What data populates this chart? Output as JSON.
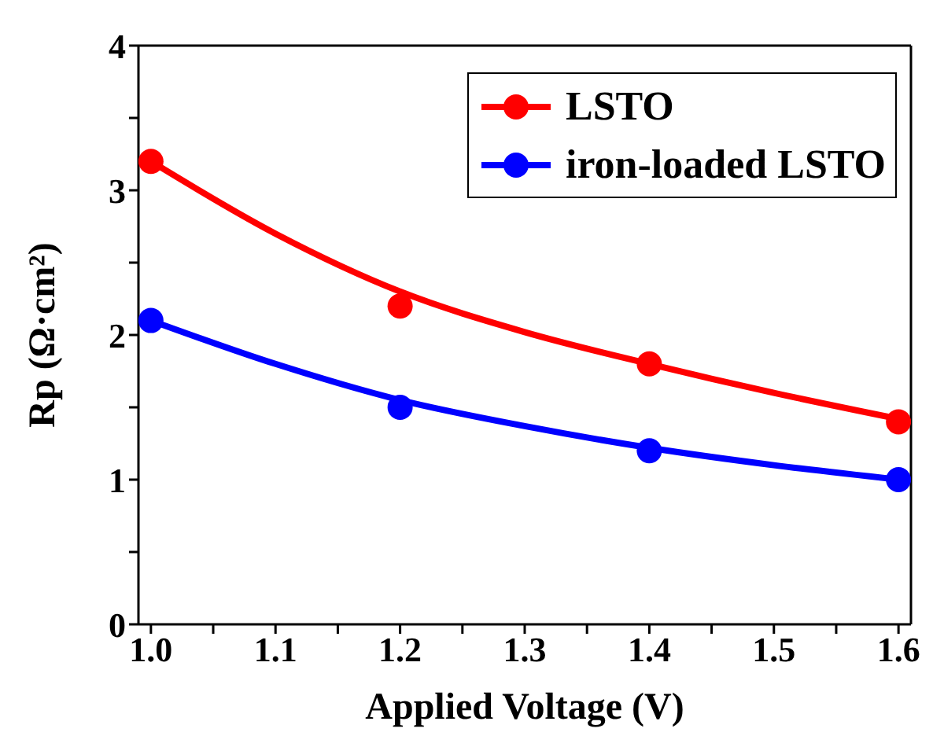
{
  "chart_data": {
    "type": "scatter",
    "xlabel": "Applied Voltage (V)",
    "ylabel": "Rp (Ω·cm²)",
    "xlim": [
      0.99,
      1.61
    ],
    "xticks": [
      {
        "value": 1.0,
        "label": "1.0"
      },
      {
        "value": 1.05,
        "label": null
      },
      1.1,
      {
        "value": 1.15,
        "label": null
      },
      1.2,
      {
        "value": 1.25,
        "label": null
      },
      1.3,
      {
        "value": 1.35,
        "label": null
      },
      1.4,
      {
        "value": 1.45,
        "label": null
      },
      1.5,
      {
        "value": 1.55,
        "label": null
      },
      1.6
    ],
    "ylim": [
      0,
      4
    ],
    "yticks": [
      0,
      {
        "value": 0.5,
        "label": null
      },
      1,
      {
        "value": 1.5,
        "label": null
      },
      2,
      {
        "value": 2.5,
        "label": null
      },
      3,
      {
        "value": 3.5,
        "label": null
      },
      4
    ],
    "x": [
      1.0,
      1.2,
      1.4,
      1.6
    ],
    "legend": "top right",
    "series": [
      {
        "name": "LSTO",
        "color": "#ff0000",
        "marker": "circle",
        "values": [
          3.2,
          2.2,
          1.8,
          1.4
        ]
      },
      {
        "name": "iron-loaded LSTO",
        "color": "#0000ff",
        "marker": "circle",
        "values": [
          2.1,
          1.5,
          1.2,
          1.0
        ]
      },
      {
        "type": "line",
        "marker": "none",
        "color": "#ff0000",
        "x": [
          1.0,
          1.1,
          1.2,
          1.3,
          1.4,
          1.5,
          1.6
        ],
        "values": [
          3.2,
          2.7,
          2.3,
          2.02,
          1.8,
          1.6,
          1.42
        ]
      },
      {
        "type": "line",
        "marker": "none",
        "color": "#0000ff",
        "x": [
          1.0,
          1.1,
          1.2,
          1.3,
          1.4,
          1.5,
          1.6
        ],
        "values": [
          2.1,
          1.8,
          1.55,
          1.37,
          1.22,
          1.1,
          1.0
        ]
      }
    ]
  }
}
